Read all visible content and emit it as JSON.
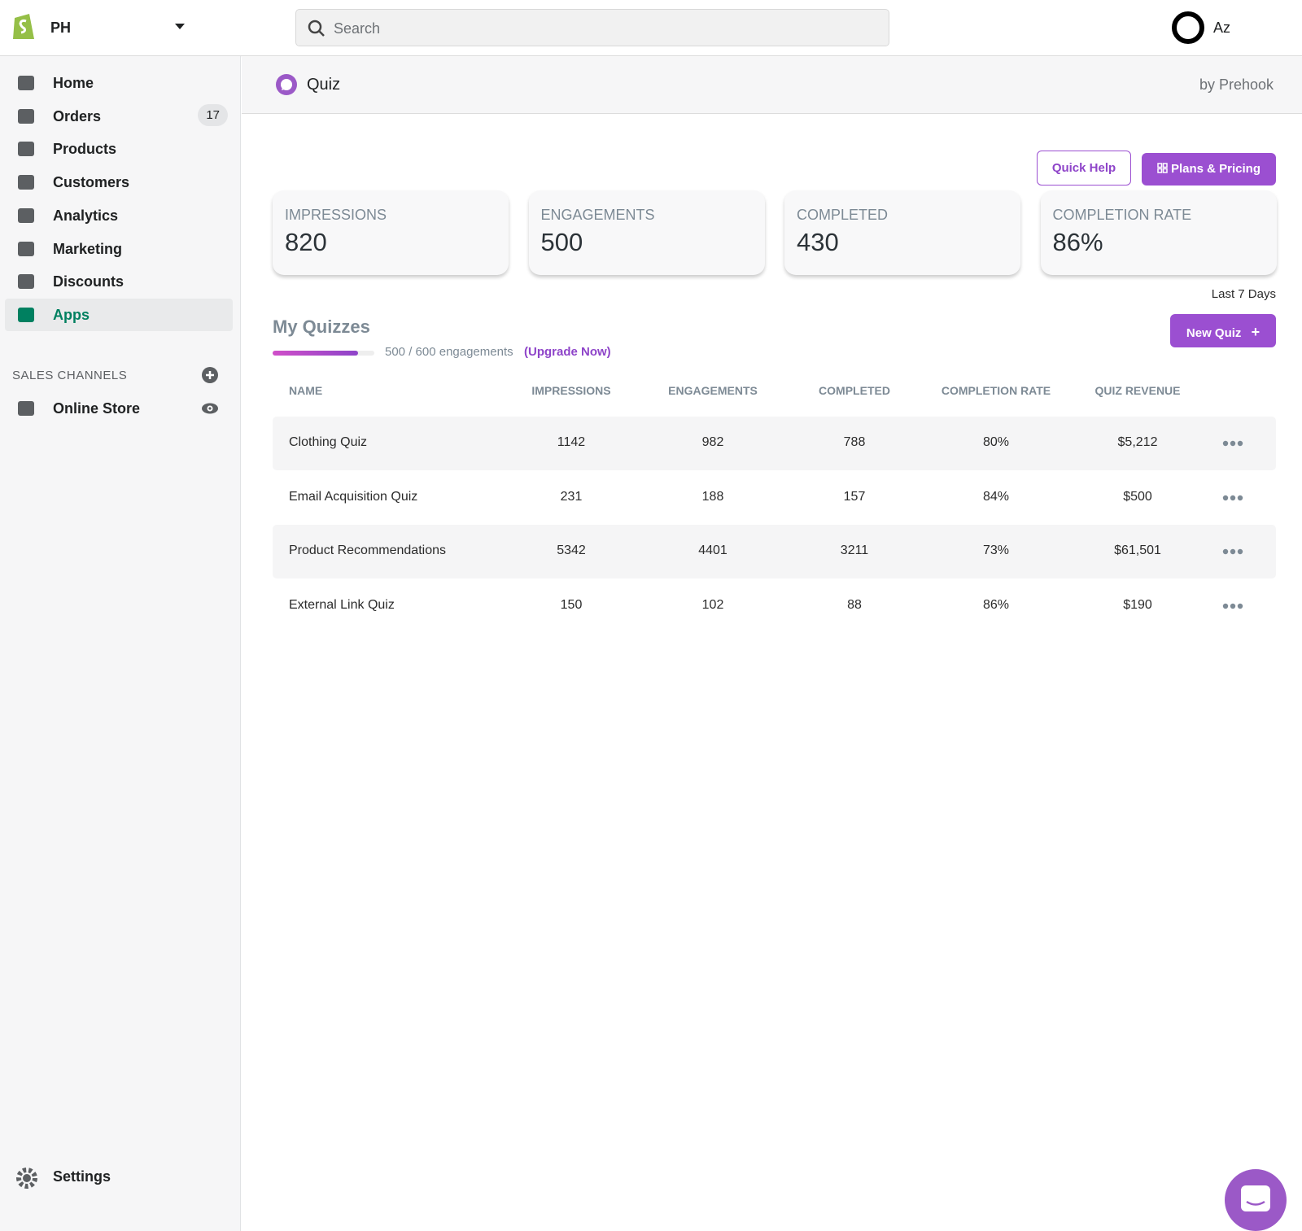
{
  "topbar": {
    "store": "PH",
    "search_placeholder": "Search",
    "user": "Az"
  },
  "sidebar": {
    "nav": [
      {
        "label": "Home"
      },
      {
        "label": "Orders",
        "badge": "17"
      },
      {
        "label": "Products"
      },
      {
        "label": "Customers"
      },
      {
        "label": "Analytics"
      },
      {
        "label": "Marketing"
      },
      {
        "label": "Discounts"
      },
      {
        "label": "Apps"
      }
    ],
    "active": "Apps",
    "sales_channels_title": "SALES CHANNELS",
    "channels": [
      "Online Store"
    ],
    "settings": "Settings"
  },
  "app": {
    "name": "Quiz",
    "by": "by Prehook"
  },
  "buttons": {
    "quick_help": "Quick Help",
    "plans": "Plans & Pricing",
    "new_quiz": "New Quiz"
  },
  "stats": [
    {
      "label": "IMPRESSIONS",
      "value": "820"
    },
    {
      "label": "ENGAGEMENTS",
      "value": "500"
    },
    {
      "label": "COMPLETED",
      "value": "430"
    },
    {
      "label": "COMPLETION RATE",
      "value": "86%"
    }
  ],
  "period": "Last 7 Days",
  "quizzes": {
    "title": "My Quizzes",
    "usage": "500 / 600 engagements",
    "upgrade": "(Upgrade Now)",
    "columns": [
      "NAME",
      "IMPRESSIONS",
      "ENGAGEMENTS",
      "COMPLETED",
      "COMPLETION RATE",
      "QUIZ REVENUE"
    ],
    "rows": [
      [
        "Clothing Quiz",
        "1142",
        "982",
        "788",
        "80%",
        "$5,212"
      ],
      [
        "Email Acquisition Quiz",
        "231",
        "188",
        "157",
        "84%",
        "$500"
      ],
      [
        "Product Recommendations",
        "5342",
        "4401",
        "3211",
        "73%",
        "$61,501"
      ],
      [
        "External Link Quiz",
        "150",
        "102",
        "88",
        "86%",
        "$190"
      ]
    ]
  }
}
